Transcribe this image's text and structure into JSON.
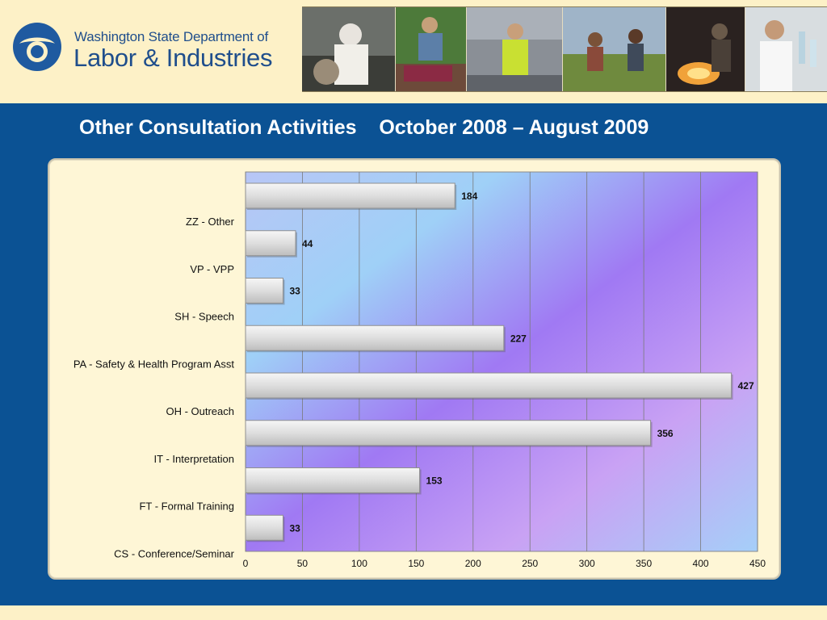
{
  "header": {
    "org_line1": "Washington State Department of",
    "org_line2": "Labor & Industries",
    "photos": [
      "worker-protective-gear-photo",
      "vineyard-worker-photo",
      "safety-vest-worker-photo",
      "field-workers-photo",
      "furnace-worker-photo",
      "lab-worker-photo"
    ]
  },
  "colors": {
    "brand_blue": "#0b5294",
    "cream": "#fdf1c7",
    "bar_fill": "#dedede"
  },
  "title": "Other Consultation Activities    October 2008 – August 2009",
  "chart_data": {
    "type": "bar",
    "orientation": "horizontal",
    "title": "",
    "xlabel": "",
    "ylabel": "",
    "categories": [
      "ZZ - Other",
      "VP - VPP",
      "SH - Speech",
      "PA - Safety & Health Program Asst",
      "OH - Outreach",
      "IT - Interpretation",
      "FT - Formal Training",
      "CS - Conference/Seminar"
    ],
    "values": [
      184,
      44,
      33,
      227,
      427,
      356,
      153,
      33
    ],
    "xlim": [
      0,
      450
    ],
    "xticks": [
      0,
      50,
      100,
      150,
      200,
      250,
      300,
      350,
      400,
      450
    ],
    "grid": true,
    "legend": "none"
  }
}
